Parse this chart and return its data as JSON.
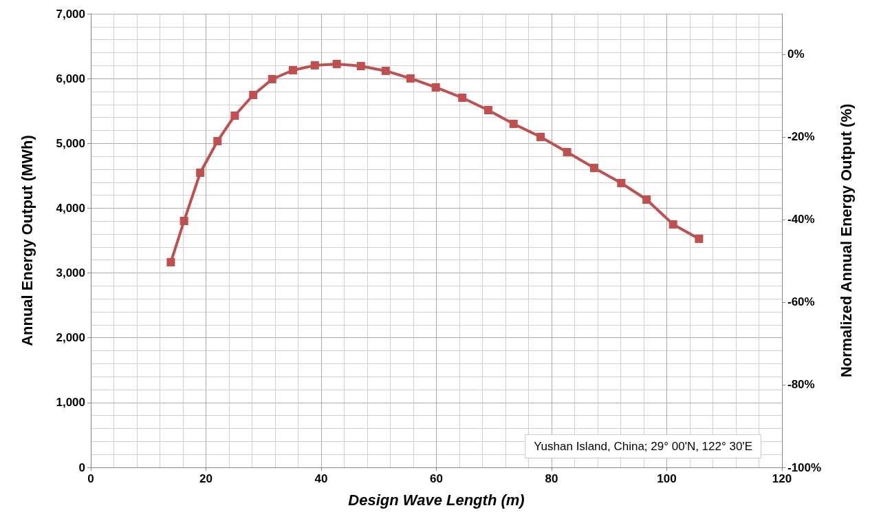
{
  "chart_data": {
    "type": "line",
    "xlabel": "Design Wave Length (m)",
    "ylabel": "Annual Energy Output (MWh)",
    "y2label": "Normalized Annual Energy Output (%)",
    "annotations": [
      "Yushan Island, China; 29° 00'N, 122° 30'E"
    ],
    "marker": "square",
    "grid": true,
    "line_style": "solid",
    "xlim": [
      0,
      120
    ],
    "xticks": [
      0,
      20,
      40,
      60,
      80,
      100,
      120
    ],
    "ylim": [
      0,
      7000
    ],
    "yticks": [
      {
        "value": 0,
        "label": "0"
      },
      {
        "value": 1000,
        "label": "1,000"
      },
      {
        "value": 2000,
        "label": "2,000"
      },
      {
        "value": 3000,
        "label": "3,000"
      },
      {
        "value": 4000,
        "label": "4,000"
      },
      {
        "value": 5000,
        "label": "5,000"
      },
      {
        "value": 6000,
        "label": "6,000"
      },
      {
        "value": 7000,
        "label": "7,000"
      }
    ],
    "y2lim": [
      -100,
      9.8
    ],
    "y2ticks": [
      {
        "value": -100,
        "label": "-100%"
      },
      {
        "value": -80,
        "label": "-80%"
      },
      {
        "value": -60,
        "label": "-60%"
      },
      {
        "value": -40,
        "label": "-40%"
      },
      {
        "value": -20,
        "label": "-20%"
      },
      {
        "value": 0,
        "label": "0%"
      }
    ],
    "series": [
      {
        "color": "#c0504d",
        "x": [
          13.9,
          16.2,
          19.0,
          22.0,
          25.0,
          28.2,
          31.5,
          35.1,
          38.9,
          42.7,
          46.9,
          51.2,
          55.5,
          59.9,
          64.5,
          69.0,
          73.4,
          78.1,
          82.7,
          87.4,
          92.1,
          96.5,
          101.1,
          105.6
        ],
        "values": [
          3166,
          3803,
          4546,
          5035,
          5428,
          5747,
          5991,
          6129,
          6204,
          6225,
          6193,
          6119,
          6002,
          5864,
          5704,
          5513,
          5301,
          5099,
          4865,
          4621,
          4387,
          4132,
          3750,
          3527
        ]
      }
    ]
  }
}
